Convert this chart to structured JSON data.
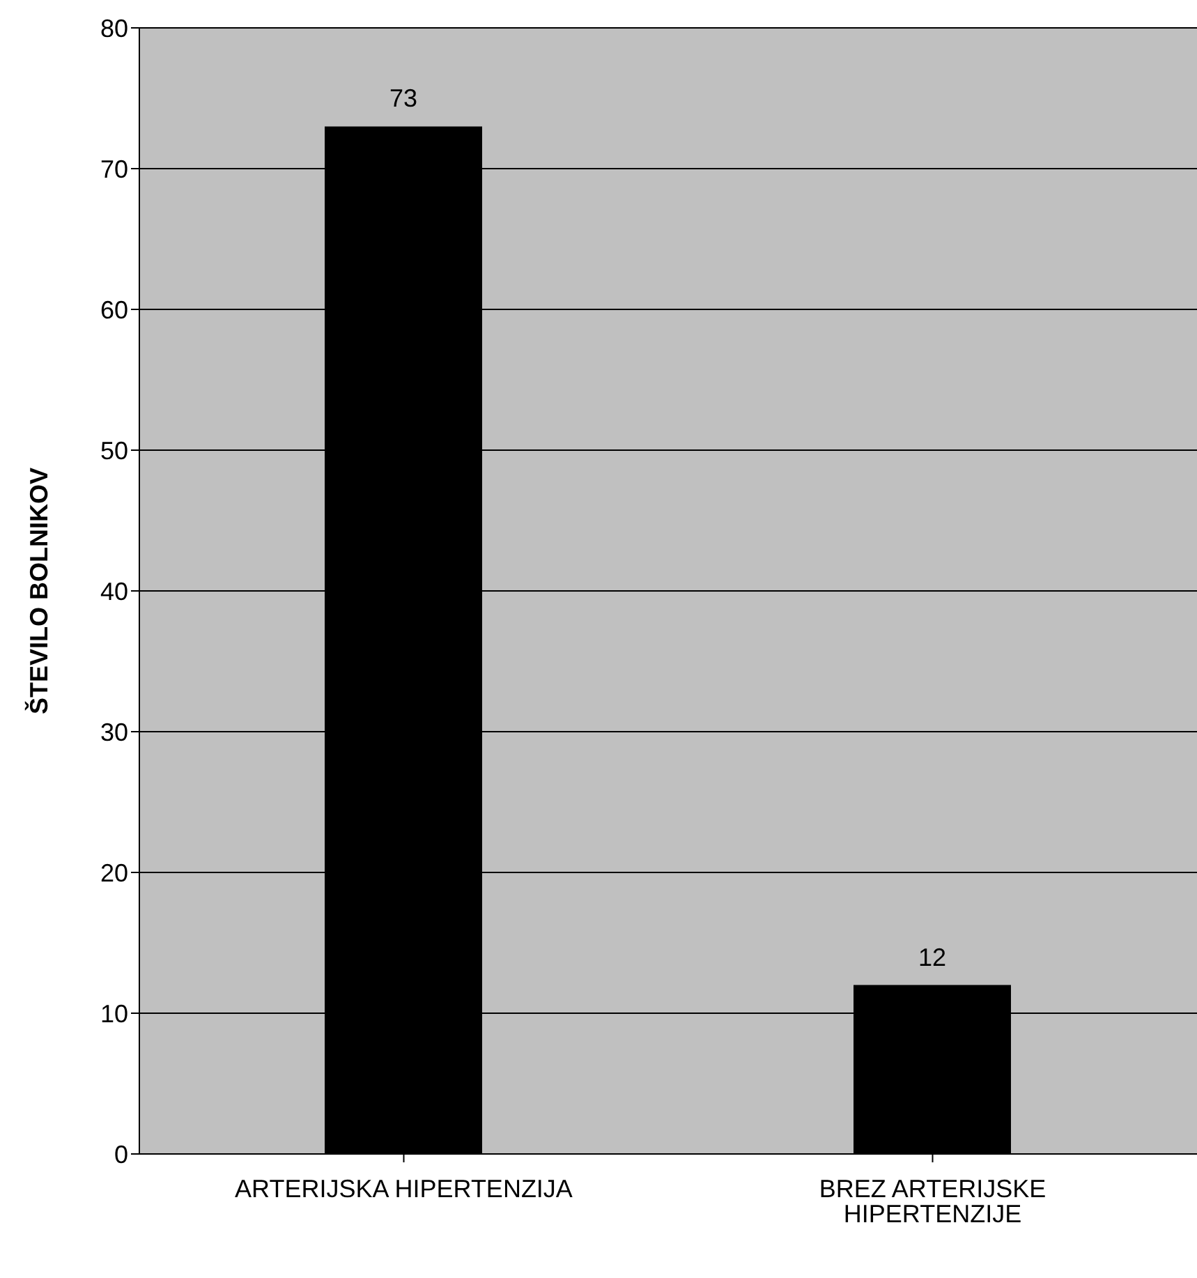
{
  "chart_data": {
    "type": "bar",
    "ylabel": "ŠTEVILO BOLNIKOV",
    "categories": [
      "ARTERIJSKA HIPERTENZIJA",
      "BREZ ARTERIJSKE HIPERTENZIJE"
    ],
    "values": [
      73,
      12
    ],
    "color": "#000000",
    "ylim": [
      0,
      80
    ],
    "yticks": [
      0,
      10,
      20,
      30,
      40,
      50,
      60,
      70,
      80
    ],
    "grid": "y",
    "data_labels": true
  }
}
